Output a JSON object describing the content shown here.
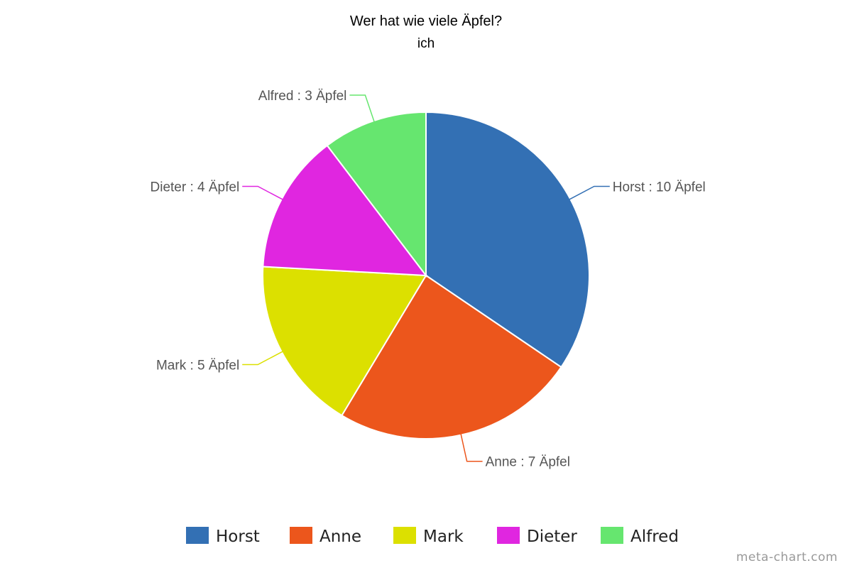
{
  "chart_data": {
    "type": "pie",
    "title": "Wer hat wie viele Äpfel?",
    "subtitle": "ich",
    "unit": "Äpfel",
    "slices": [
      {
        "name": "Horst",
        "value": 10,
        "color": "#3370b4"
      },
      {
        "name": "Anne",
        "value": 7,
        "color": "#ec561c"
      },
      {
        "name": "Mark",
        "value": 5,
        "color": "#dce000"
      },
      {
        "name": "Dieter",
        "value": 4,
        "color": "#e026e0"
      },
      {
        "name": "Alfred",
        "value": 3,
        "color": "#66e66f"
      }
    ],
    "legend_position": "bottom"
  },
  "credit": "meta-chart.com"
}
